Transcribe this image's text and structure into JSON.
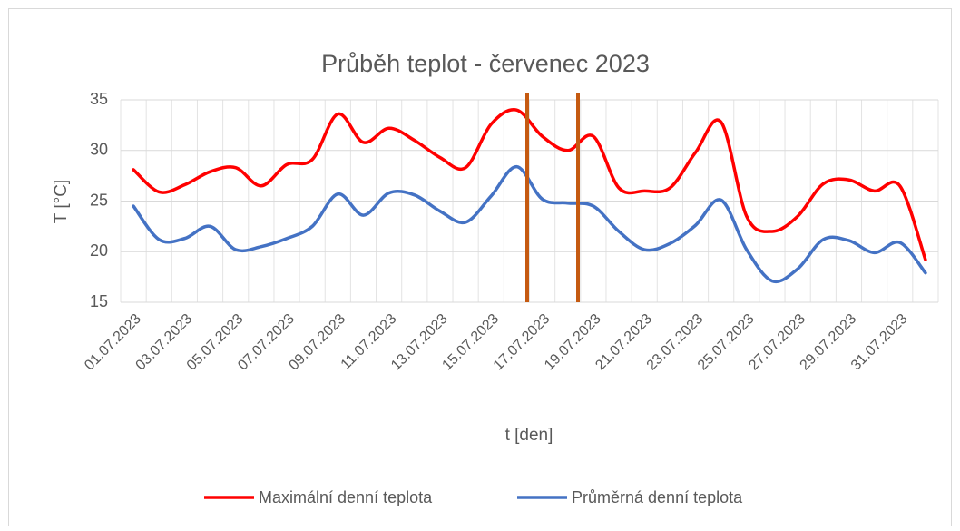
{
  "chart_data": {
    "type": "line",
    "title": "Průběh teplot - červenec 2023",
    "x_label": "t [den]",
    "y_label": "T [°C]",
    "categories": [
      "01.07.2023",
      null,
      "03.07.2023",
      null,
      "05.07.2023",
      null,
      "07.07.2023",
      null,
      "09.07.2023",
      null,
      "11.07.2023",
      null,
      "13.07.2023",
      null,
      "15.07.2023",
      null,
      "17.07.2023",
      null,
      "19.07.2023",
      null,
      "21.07.2023",
      null,
      "23.07.2023",
      null,
      "25.07.2023",
      null,
      "27.07.2023",
      null,
      "29.07.2023",
      null,
      "31.07.2023",
      null
    ],
    "series": [
      {
        "name": "Maximální denní teplota",
        "color": "#ff0000",
        "values": [
          28.1,
          25.9,
          26.6,
          27.9,
          28.3,
          26.5,
          28.6,
          29.1,
          33.6,
          30.8,
          32.2,
          31,
          29.3,
          28.3,
          32.6,
          34,
          31.4,
          30,
          31.4,
          26.3,
          26,
          26.3,
          29.8,
          32.8,
          23.5,
          22,
          23.5,
          26.7,
          27.1,
          26,
          26.5,
          19.2
        ]
      },
      {
        "name": "Průměrná denní teplota",
        "color": "#4472c4",
        "values": [
          24.5,
          21.2,
          21.3,
          22.5,
          20.2,
          20.5,
          21.3,
          22.5,
          25.7,
          23.6,
          25.8,
          25.6,
          24,
          22.9,
          25.5,
          28.4,
          25.2,
          24.8,
          24.5,
          22,
          20.2,
          20.8,
          22.6,
          25.1,
          20.2,
          17.1,
          18.3,
          21.2,
          21.1,
          19.9,
          20.9,
          17.9
        ]
      }
    ],
    "ylim": [
      15,
      35
    ],
    "yticks": [
      15,
      20,
      25,
      30,
      35
    ],
    "grid": true,
    "smooth": true,
    "legend": "bottom"
  }
}
